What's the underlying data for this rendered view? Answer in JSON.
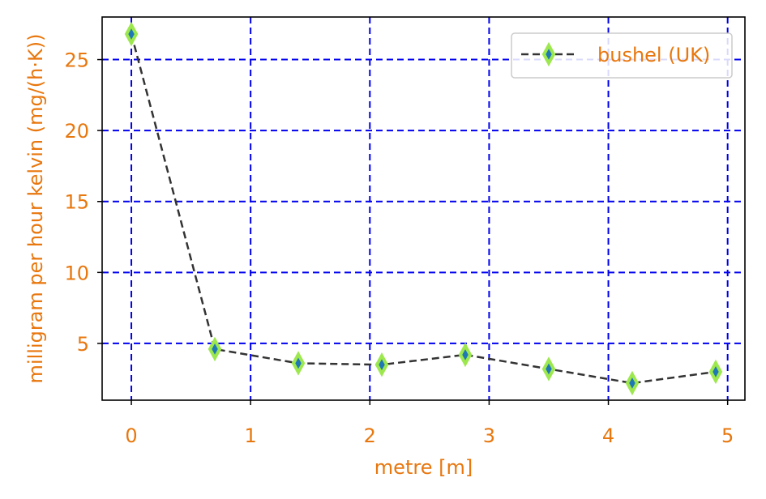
{
  "chart_data": {
    "type": "line",
    "title": "",
    "xlabel": "metre [m]",
    "ylabel": "milligram per hour kelvin (mg/(h·K))",
    "xlim": [
      -0.245,
      5.145
    ],
    "ylim": [
      1.0,
      28.0
    ],
    "x_ticks": [
      0,
      1,
      2,
      3,
      4,
      5
    ],
    "x_tick_labels": [
      "0",
      "1",
      "2",
      "3",
      "4",
      "5"
    ],
    "y_ticks": [
      5,
      10,
      15,
      20,
      25
    ],
    "y_tick_labels": [
      "5",
      "10",
      "15",
      "20",
      "25"
    ],
    "grid": true,
    "legend_position": "top-right",
    "series": [
      {
        "name": "bushel (UK)",
        "x": [
          0.0,
          0.7,
          1.4,
          2.1,
          2.8,
          3.5,
          4.2,
          4.9
        ],
        "y": [
          26.8,
          4.6,
          3.6,
          3.5,
          4.2,
          3.2,
          2.2,
          3.0
        ],
        "line_color": "#333333",
        "line_style": "dashed",
        "marker": "thin-diamond",
        "marker_face_color": "#1f77b4",
        "marker_edge_color": "#9ee84f"
      }
    ],
    "colors": {
      "grid": "#0000ee",
      "text": "#e8770e",
      "axes": "#000000"
    }
  }
}
